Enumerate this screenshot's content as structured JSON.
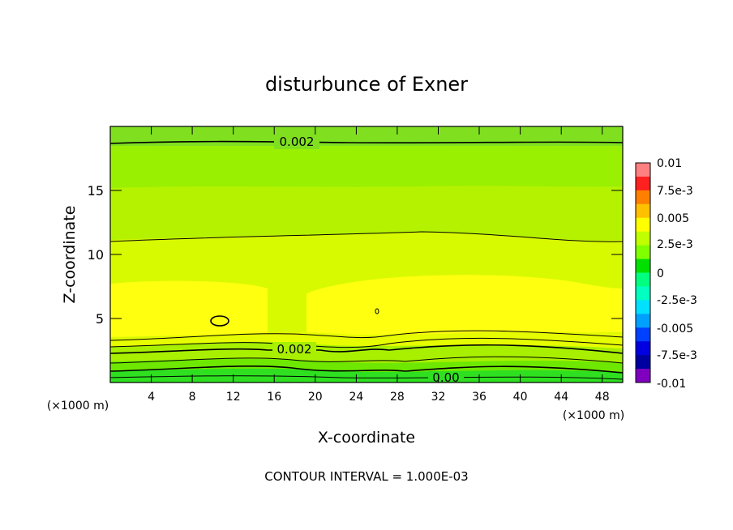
{
  "chart_data": {
    "type": "heatmap",
    "title": "disturbunce of Exner",
    "xlabel": "X-coordinate",
    "ylabel": "Z-coordinate",
    "x_unit": "(×1000 m)",
    "y_unit": "(×1000 m)",
    "xlim": [
      0,
      50
    ],
    "ylim": [
      0,
      20
    ],
    "x_ticks": [
      "4",
      "8",
      "12",
      "16",
      "20",
      "24",
      "28",
      "32",
      "36",
      "40",
      "44",
      "48"
    ],
    "y_ticks": [
      "5",
      "10",
      "15"
    ],
    "grid": false,
    "colorbar": {
      "placement": "right",
      "labels": [
        "0.01",
        "7.5e-3",
        "0.005",
        "2.5e-3",
        "0",
        "-2.5e-3",
        "-0.005",
        "-7.5e-3",
        "-0.01"
      ],
      "colors": [
        "#ff8080",
        "#ff2020",
        "#ff8000",
        "#ffc000",
        "#ffff00",
        "#c0ff00",
        "#80ff00",
        "#00e000",
        "#00ff80",
        "#00ffc0",
        "#00e0ff",
        "#00a0ff",
        "#0040ff",
        "#0000e0",
        "#0000a0",
        "#8000c0"
      ]
    },
    "contour_labels": [
      "0.002",
      "0.002",
      "0.00"
    ],
    "footer": "CONTOUR INTERVAL = 1.000E-03",
    "value_bands": [
      {
        "z_range": [
          0,
          0.5
        ],
        "value": 0.0
      },
      {
        "z_range": [
          0.5,
          2.5
        ],
        "value": 0.001
      },
      {
        "z_range": [
          2.5,
          4
        ],
        "value": 0.0025
      },
      {
        "z_range": [
          4,
          8
        ],
        "value": 0.0035
      },
      {
        "z_range": [
          8,
          11
        ],
        "value": 0.003
      },
      {
        "z_range": [
          11,
          15
        ],
        "value": 0.0025
      },
      {
        "z_range": [
          15,
          20
        ],
        "value": 0.0015
      }
    ]
  }
}
